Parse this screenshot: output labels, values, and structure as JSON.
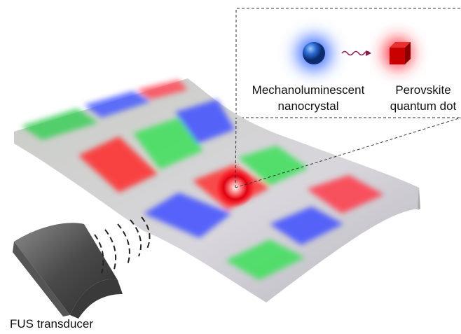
{
  "callout": {
    "items": [
      {
        "lines": [
          "Mechanoluminescent",
          "nanocrystal"
        ]
      },
      {
        "lines": [
          "Perovskite",
          "quantum dot"
        ]
      }
    ]
  },
  "transducer": {
    "label": "FUS transducer"
  }
}
